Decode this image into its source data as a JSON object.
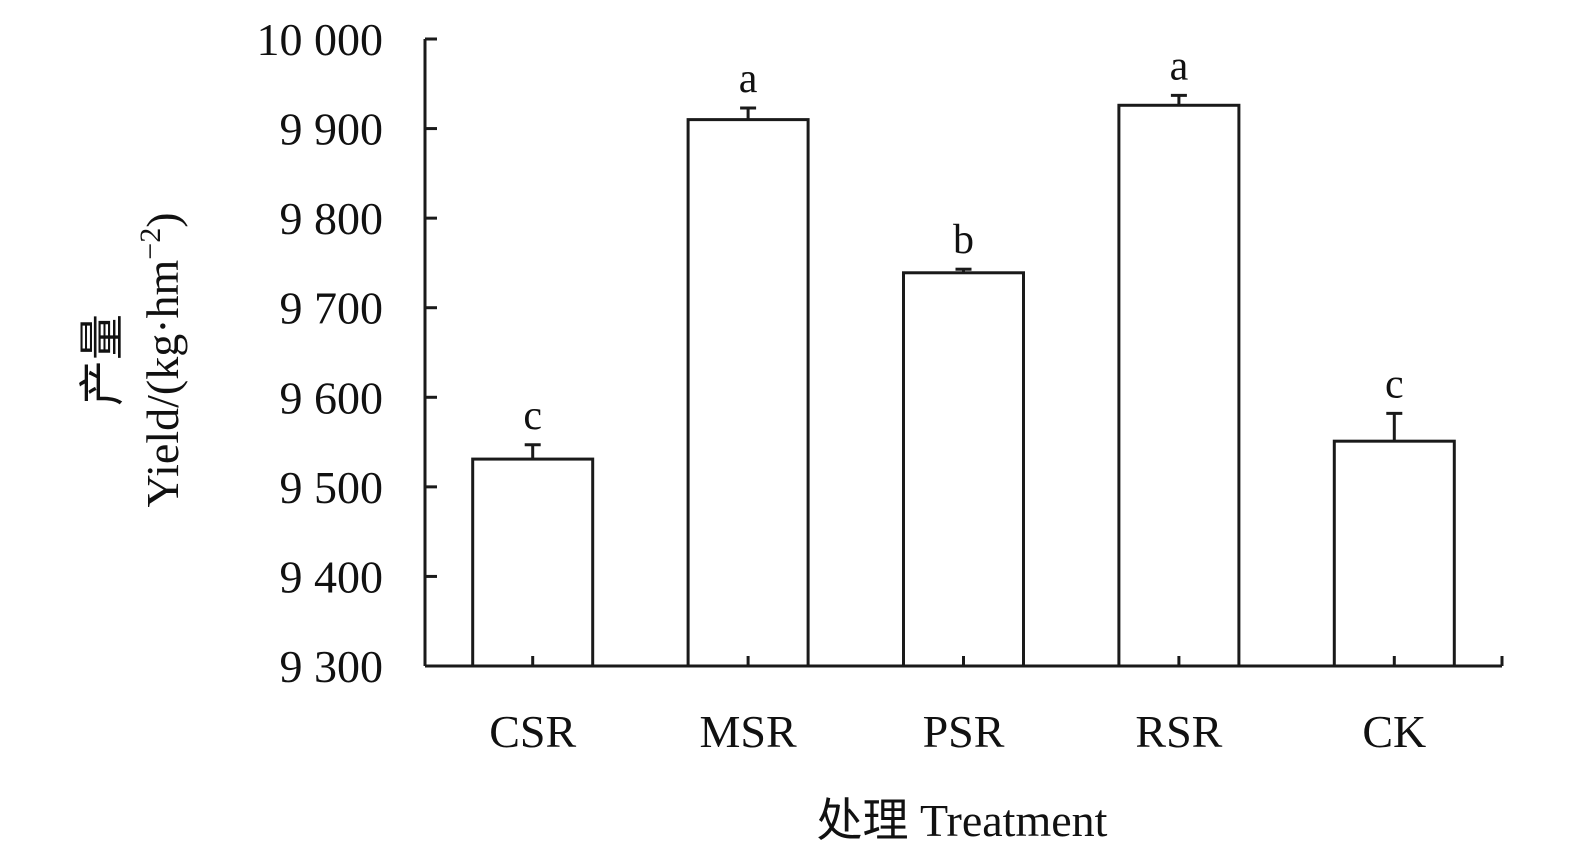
{
  "chart_data": {
    "type": "bar",
    "categories": [
      "CSR",
      "MSR",
      "PSR",
      "RSR",
      "CK"
    ],
    "values": [
      9531,
      9910,
      9739,
      9926,
      9551
    ],
    "errors": [
      16,
      13,
      4,
      11,
      31
    ],
    "significance": [
      "c",
      "a",
      "b",
      "a",
      "c"
    ],
    "xlabel": "处理 Treatment",
    "ylabel_cn": "产量",
    "ylabel_en": "Yield/(kg·hm",
    "ylabel_sup": "−2",
    "ylabel_close": ")",
    "ylim": [
      9300,
      10000
    ],
    "yticks": [
      9300,
      9400,
      9500,
      9600,
      9700,
      9800,
      9900,
      10000
    ],
    "ytick_labels": [
      "9 300",
      "9 400",
      "9 500",
      "9 600",
      "9 700",
      "9 800",
      "9 900",
      "10 000"
    ],
    "grid": false,
    "legend": "none",
    "bar_fill": "#ffffff",
    "bar_stroke": "#1a1a1a"
  }
}
